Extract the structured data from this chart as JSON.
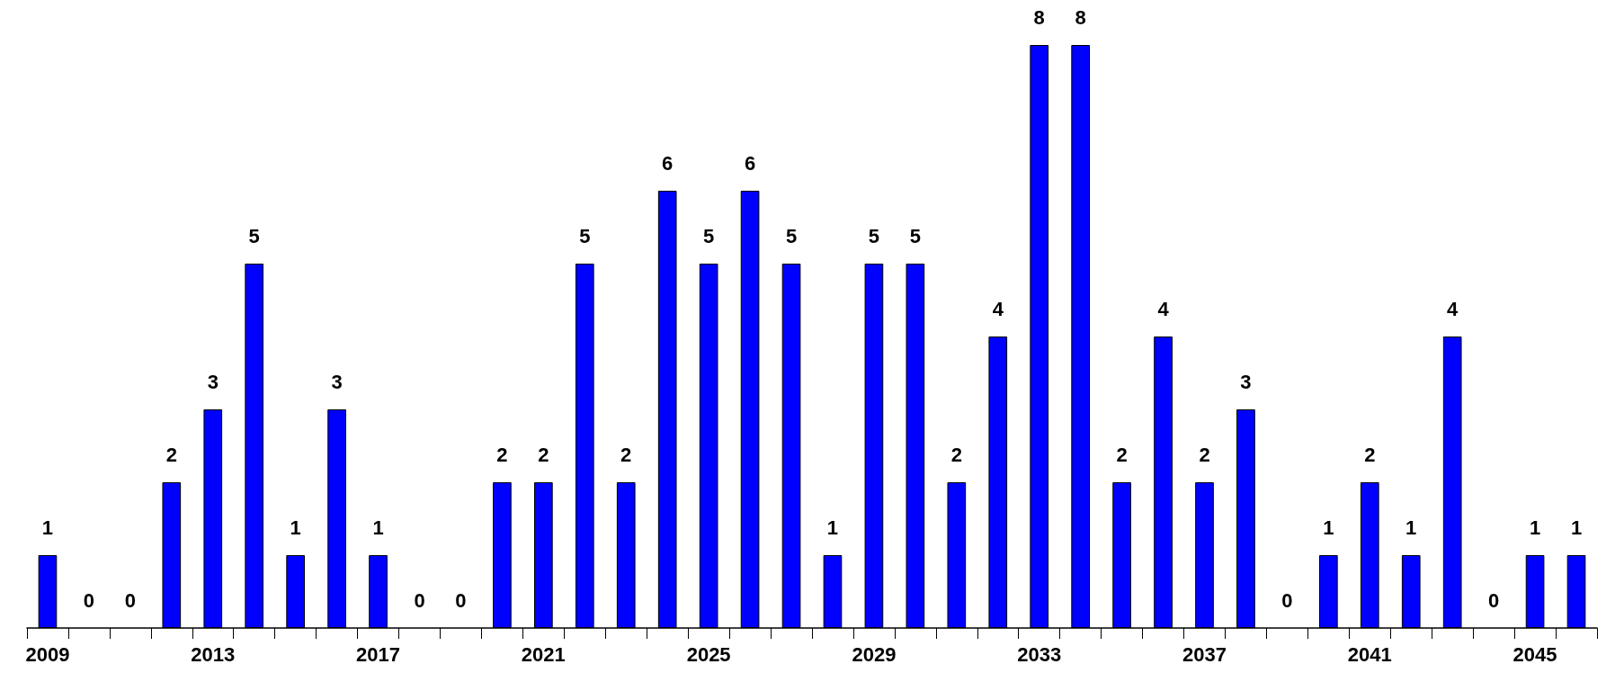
{
  "chart_data": {
    "type": "bar",
    "categories": [
      "2009",
      null,
      null,
      null,
      "2013",
      null,
      null,
      null,
      "2017",
      null,
      null,
      null,
      "2021",
      null,
      null,
      null,
      "2025",
      null,
      null,
      null,
      "2029",
      null,
      null,
      null,
      "2033",
      null,
      null,
      null,
      "2037",
      null,
      null,
      null,
      "2041",
      null,
      null,
      null,
      "2045",
      null
    ],
    "values": [
      1,
      0,
      0,
      2,
      3,
      5,
      1,
      3,
      1,
      0,
      0,
      2,
      2,
      5,
      2,
      6,
      5,
      6,
      5,
      1,
      5,
      5,
      2,
      4,
      8,
      8,
      2,
      4,
      2,
      3,
      0,
      1,
      2,
      1,
      4,
      0,
      1,
      1
    ],
    "color": "#0000ff",
    "data_labels": true
  }
}
